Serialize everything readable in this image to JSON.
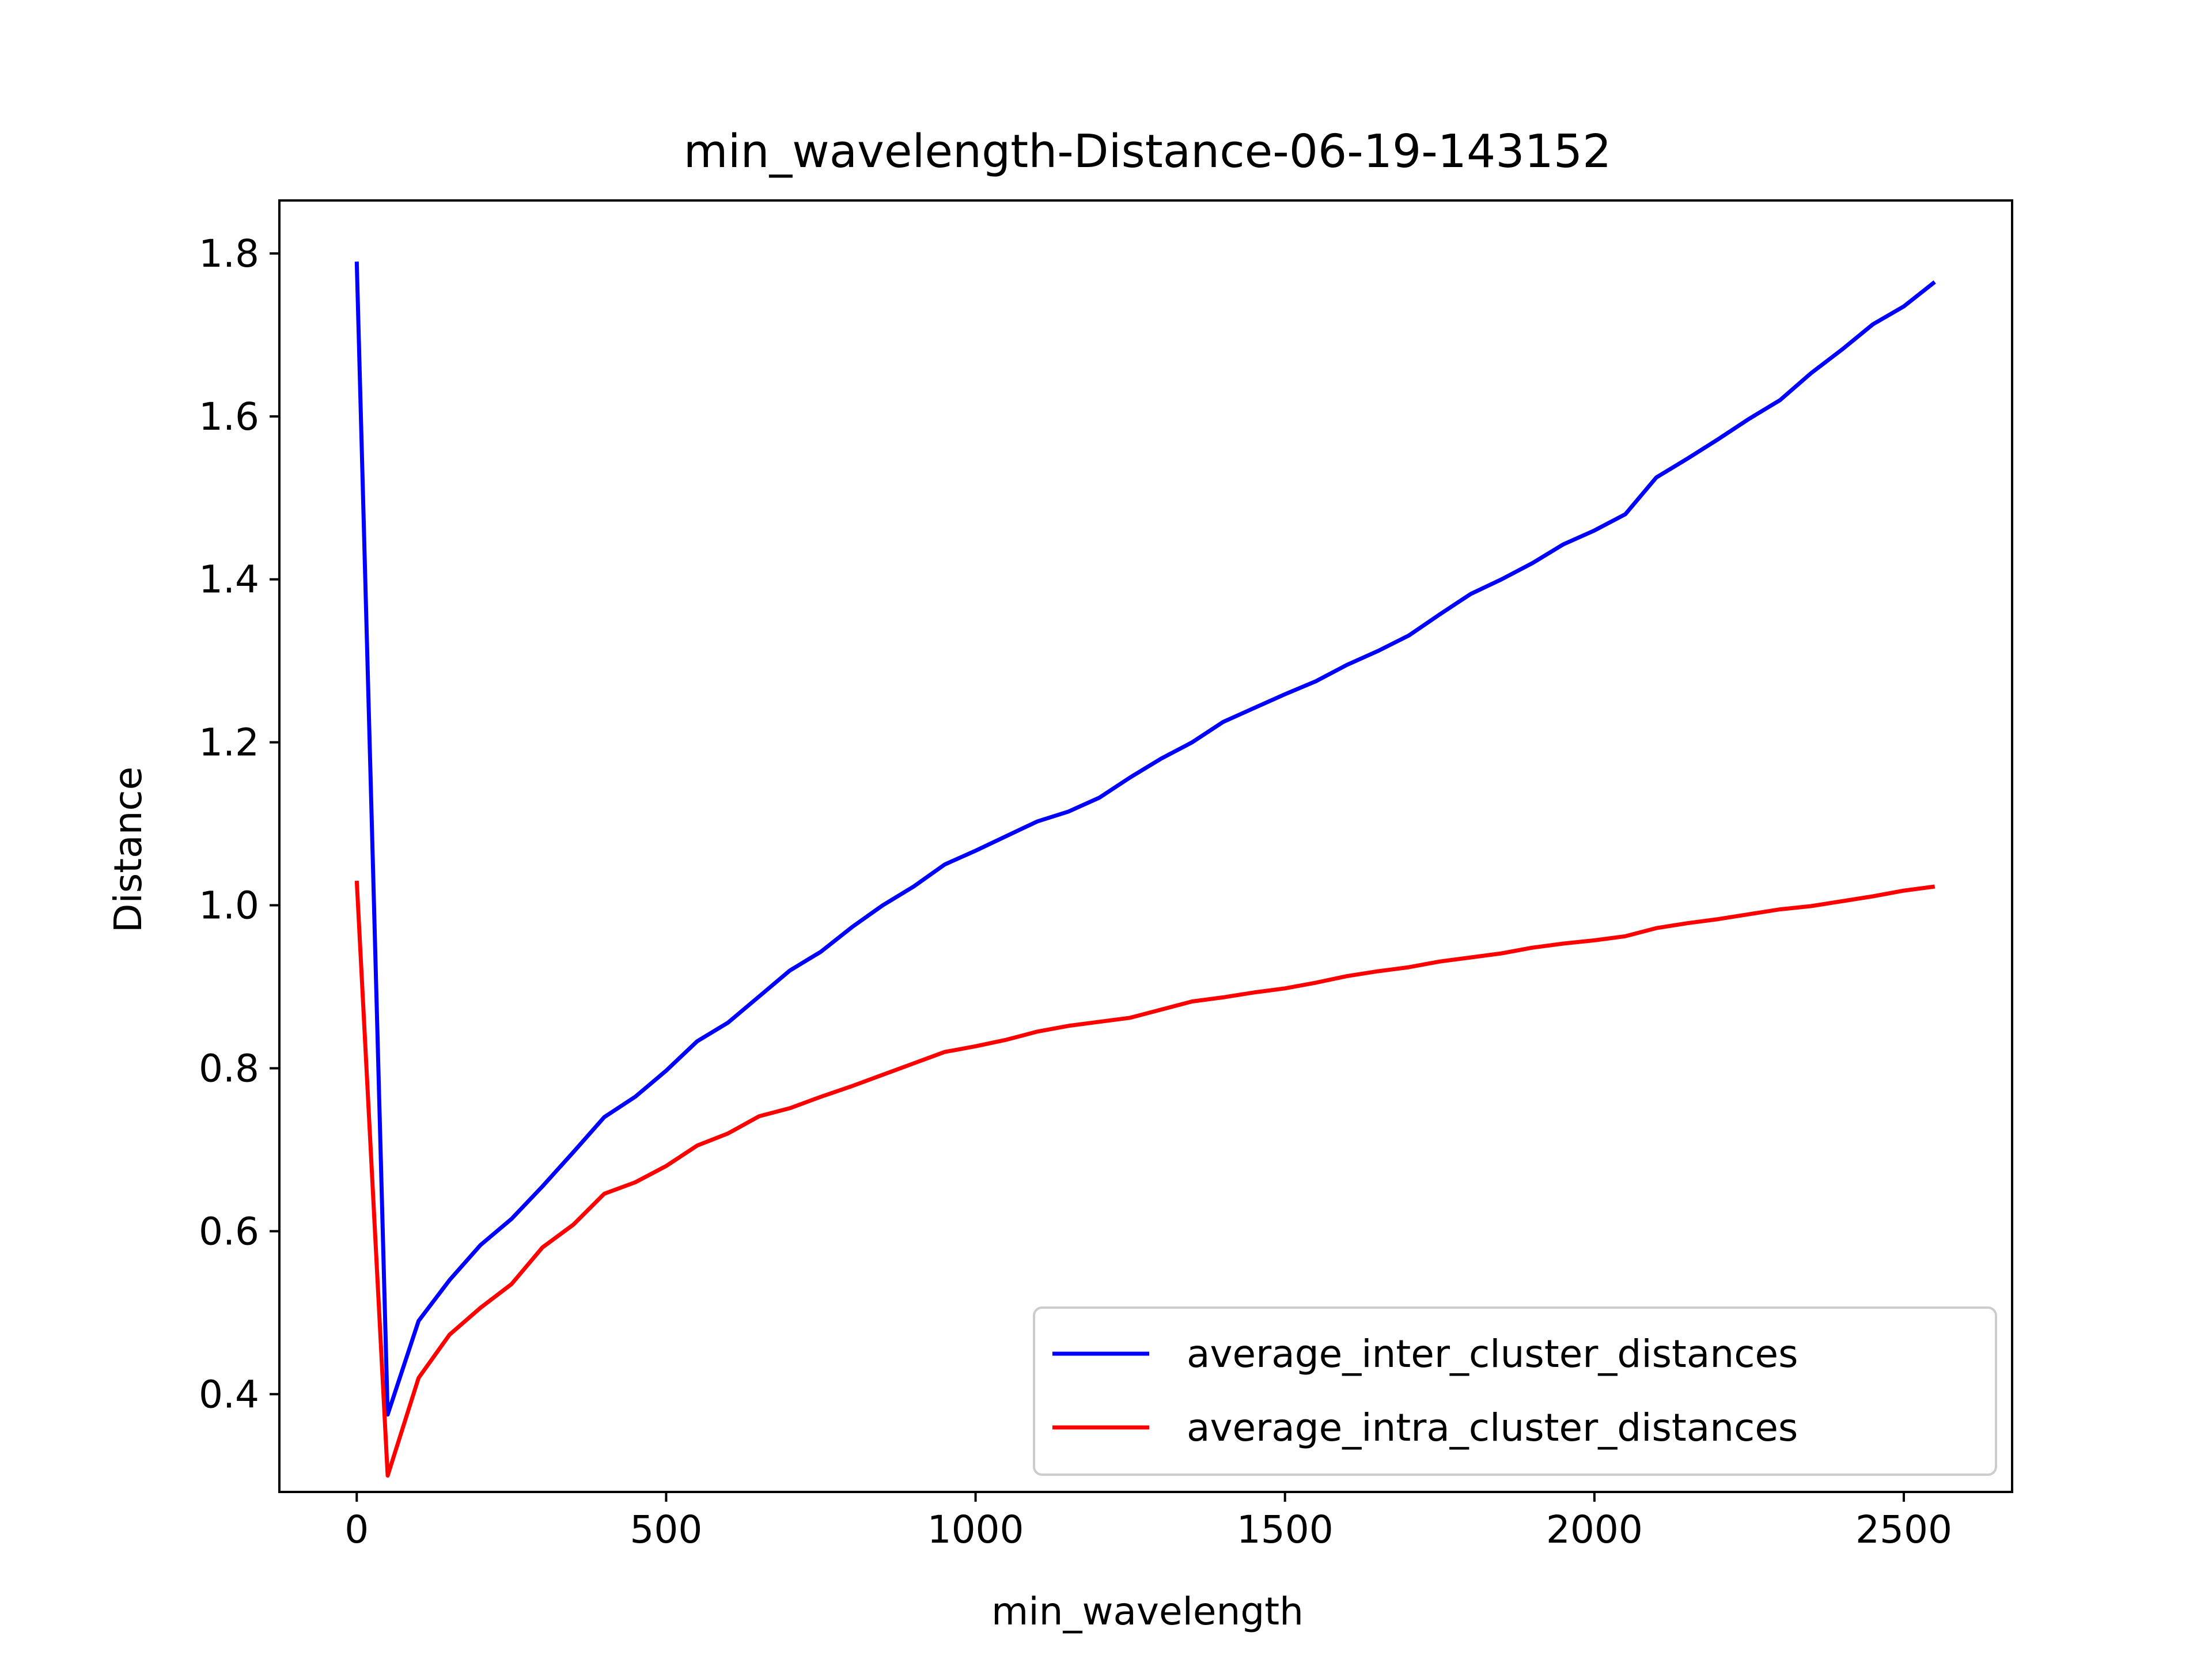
{
  "chart_data": {
    "type": "line",
    "title": "min_wavelength-Distance-06-19-143152",
    "xlabel": "min_wavelength",
    "ylabel": "Distance",
    "xlim": [
      -125,
      2675
    ],
    "ylim": [
      0.28,
      1.865
    ],
    "xticks": [
      0,
      500,
      1000,
      1500,
      2000,
      2500
    ],
    "yticks": [
      0.4,
      0.6,
      0.8,
      1.0,
      1.2,
      1.4,
      1.6,
      1.8
    ],
    "xtick_labels": [
      "0",
      "500",
      "1000",
      "1500",
      "2000",
      "2500"
    ],
    "ytick_labels": [
      "0.4",
      "0.6",
      "0.8",
      "1.0",
      "1.2",
      "1.4",
      "1.6",
      "1.8"
    ],
    "grid": false,
    "legend_position": "lower-right",
    "x": [
      0,
      50,
      100,
      150,
      200,
      250,
      300,
      350,
      400,
      450,
      500,
      550,
      600,
      650,
      700,
      750,
      800,
      850,
      900,
      950,
      1000,
      1050,
      1100,
      1150,
      1200,
      1250,
      1300,
      1350,
      1400,
      1450,
      1500,
      1550,
      1600,
      1650,
      1700,
      1750,
      1800,
      1850,
      1900,
      1950,
      2000,
      2050,
      2100,
      2150,
      2200,
      2250,
      2300,
      2350,
      2400,
      2450,
      2500,
      2550
    ],
    "series": [
      {
        "name": "average_inter_cluster_distances",
        "color": "#0000ff",
        "values": [
          1.79,
          0.375,
          0.49,
          0.54,
          0.583,
          0.615,
          0.655,
          0.697,
          0.74,
          0.765,
          0.797,
          0.833,
          0.856,
          0.888,
          0.92,
          0.943,
          0.973,
          1.0,
          1.023,
          1.05,
          1.067,
          1.085,
          1.103,
          1.115,
          1.132,
          1.157,
          1.18,
          1.2,
          1.225,
          1.242,
          1.259,
          1.275,
          1.295,
          1.312,
          1.331,
          1.357,
          1.382,
          1.4,
          1.42,
          1.443,
          1.46,
          1.48,
          1.525,
          1.548,
          1.572,
          1.597,
          1.62,
          1.653,
          1.682,
          1.713,
          1.735,
          1.765
        ]
      },
      {
        "name": "average_intra_cluster_distances",
        "color": "#ff0000",
        "values": [
          1.03,
          0.3,
          0.42,
          0.473,
          0.506,
          0.535,
          0.58,
          0.608,
          0.646,
          0.66,
          0.68,
          0.705,
          0.72,
          0.741,
          0.751,
          0.765,
          0.778,
          0.792,
          0.806,
          0.82,
          0.827,
          0.835,
          0.845,
          0.852,
          0.857,
          0.862,
          0.872,
          0.882,
          0.887,
          0.893,
          0.898,
          0.905,
          0.913,
          0.919,
          0.924,
          0.931,
          0.936,
          0.941,
          0.948,
          0.953,
          0.957,
          0.962,
          0.972,
          0.978,
          0.983,
          0.989,
          0.995,
          0.999,
          1.005,
          1.011,
          1.018,
          1.023
        ]
      }
    ]
  }
}
